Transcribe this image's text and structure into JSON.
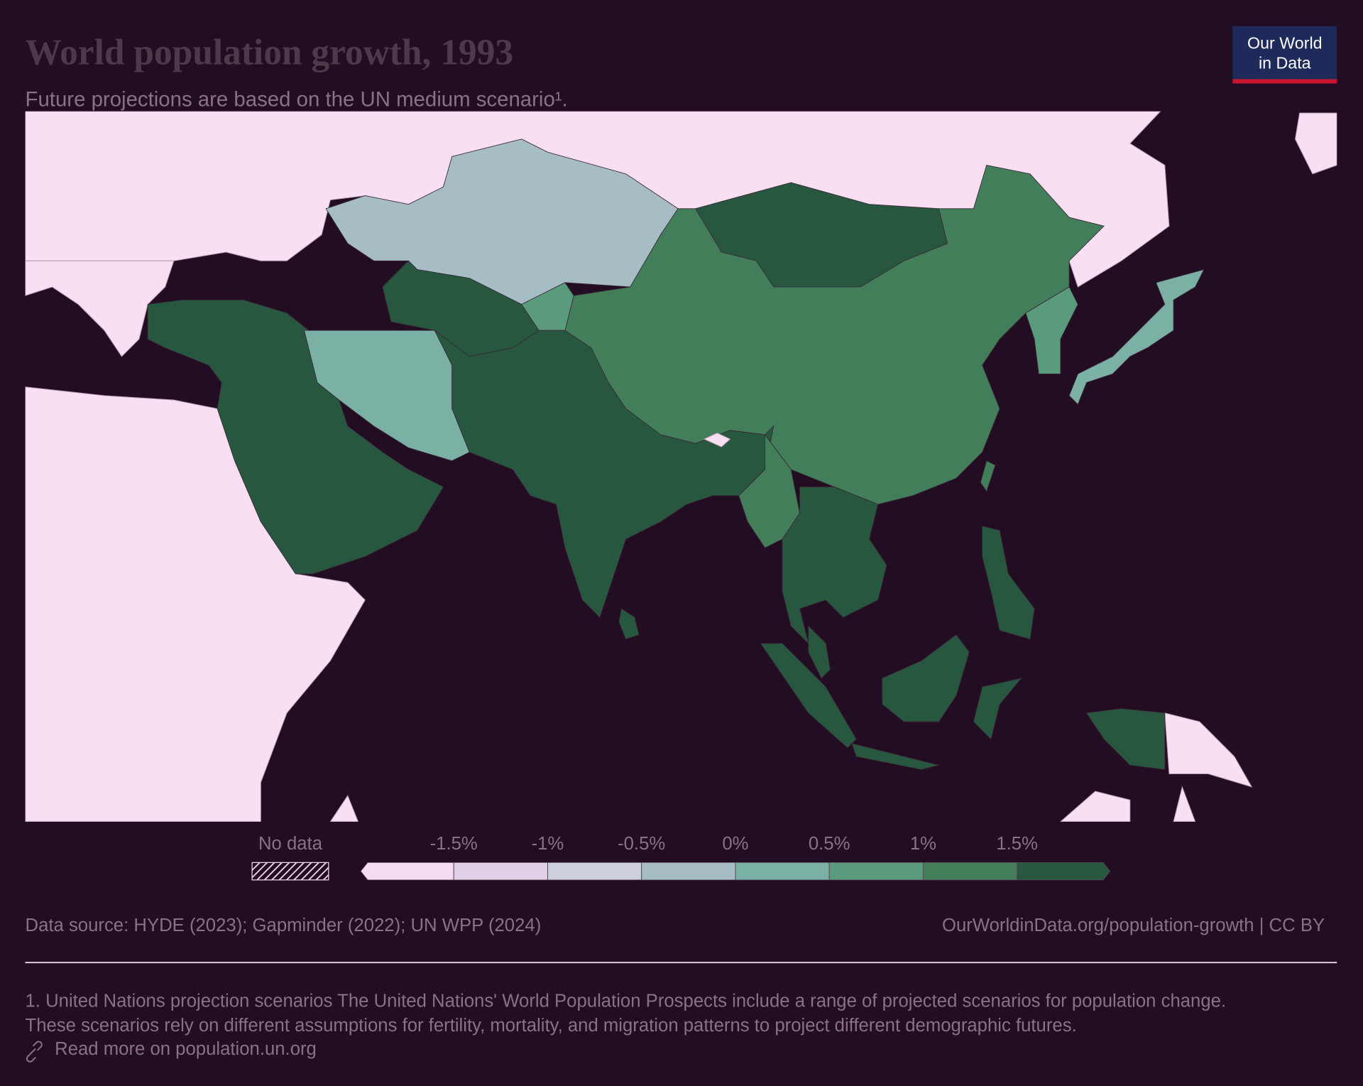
{
  "chart_data": {
    "type": "map",
    "title": "World population growth, 1993",
    "subtitle": "Future projections are based on the UN medium scenario¹.",
    "legend": {
      "no_data": "No data",
      "colors": [
        "#f6dcf1",
        "#e2d0ea",
        "#cdcfdc",
        "#a6bec3",
        "#7bb0a5",
        "#5b9b7d",
        "#437e5b",
        "#27573f"
      ],
      "ticks": [
        {
          "value": -1.5,
          "label": "-1.5%"
        },
        {
          "value": -1,
          "label": "-1%"
        },
        {
          "value": -0.5,
          "label": "-0.5%"
        },
        {
          "value": 0,
          "label": "0%"
        },
        {
          "value": 0.5,
          "label": "0.5%"
        },
        {
          "value": 1,
          "label": "1%"
        },
        {
          "value": 1.5,
          "label": "1.5%"
        }
      ]
    },
    "source": "Data source: HYDE (2023); Gapminder (2022); UN WPP (2024)",
    "url": "OurWorldinData.org/population-growth | CC BY",
    "footnote": [
      "1. United Nations projection scenarios The United Nations' World Population Prospects include a range of projected scenarios for population change.",
      "These scenarios rely on different assumptions for fertility, mortality, and migration patterns to project different demographic futures."
    ],
    "link": "Read more on population.un.org",
    "logo": [
      "Our World",
      "in Data"
    ]
  }
}
